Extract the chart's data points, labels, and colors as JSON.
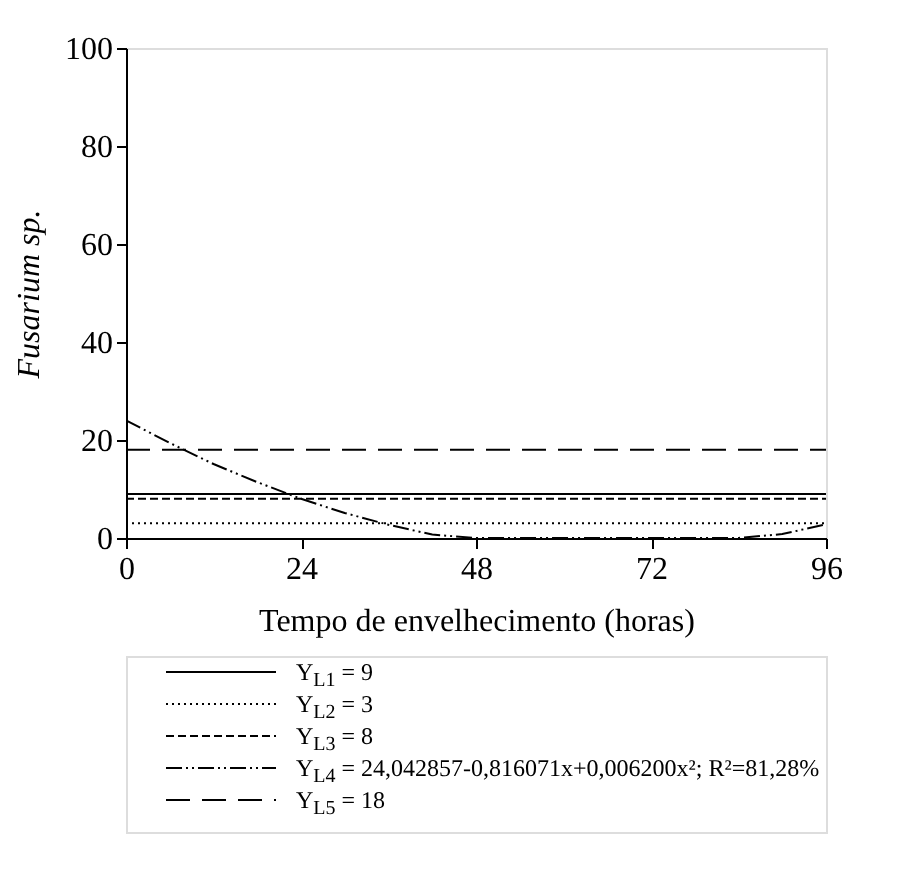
{
  "chart_data": {
    "type": "line",
    "xlabel": "Tempo de envelhecimento (horas)",
    "ylabel": "Fusarium sp.",
    "xlim": [
      0,
      96
    ],
    "xticks": [
      0,
      24,
      48,
      72,
      96
    ],
    "ylim": [
      0,
      100
    ],
    "yticks": [
      0,
      20,
      40,
      60,
      80,
      100
    ],
    "grid": false,
    "legend": "bottom",
    "marker": "none",
    "series": [
      {
        "name": "Y$_{L1}$ = 9",
        "color": "#000000",
        "line_style": "solid",
        "x": [
          0,
          96
        ],
        "values": [
          9,
          9
        ]
      },
      {
        "name": "Y$_{L2}$ = 3",
        "color": "#000000",
        "line_style": "dotted",
        "x": [
          0,
          96
        ],
        "values": [
          3,
          3
        ]
      },
      {
        "name": "Y$_{L3}$ = 8",
        "color": "#000000",
        "line_style": "dashed",
        "x": [
          0,
          96
        ],
        "values": [
          8,
          8
        ]
      },
      {
        "name": "Y$_{L4}$ = 24,042857-0,816071x+0,006200x²; R²=81,28%",
        "color": "#000000",
        "line_style": "dashdotdot",
        "x": [
          0,
          6,
          12,
          18,
          24,
          30,
          36,
          42,
          48,
          54,
          60,
          66,
          72,
          78,
          84,
          90,
          96
        ],
        "values": [
          24,
          19.4,
          15.1,
          11.4,
          8,
          5.1,
          2.7,
          0.7,
          0,
          0,
          0,
          0,
          0,
          0,
          0,
          0.8,
          2.8
        ]
      },
      {
        "name": "Y$_{L5}$ = 18",
        "color": "#000000",
        "line_style": "longdash",
        "x": [
          0,
          96
        ],
        "values": [
          18,
          18
        ]
      }
    ]
  }
}
